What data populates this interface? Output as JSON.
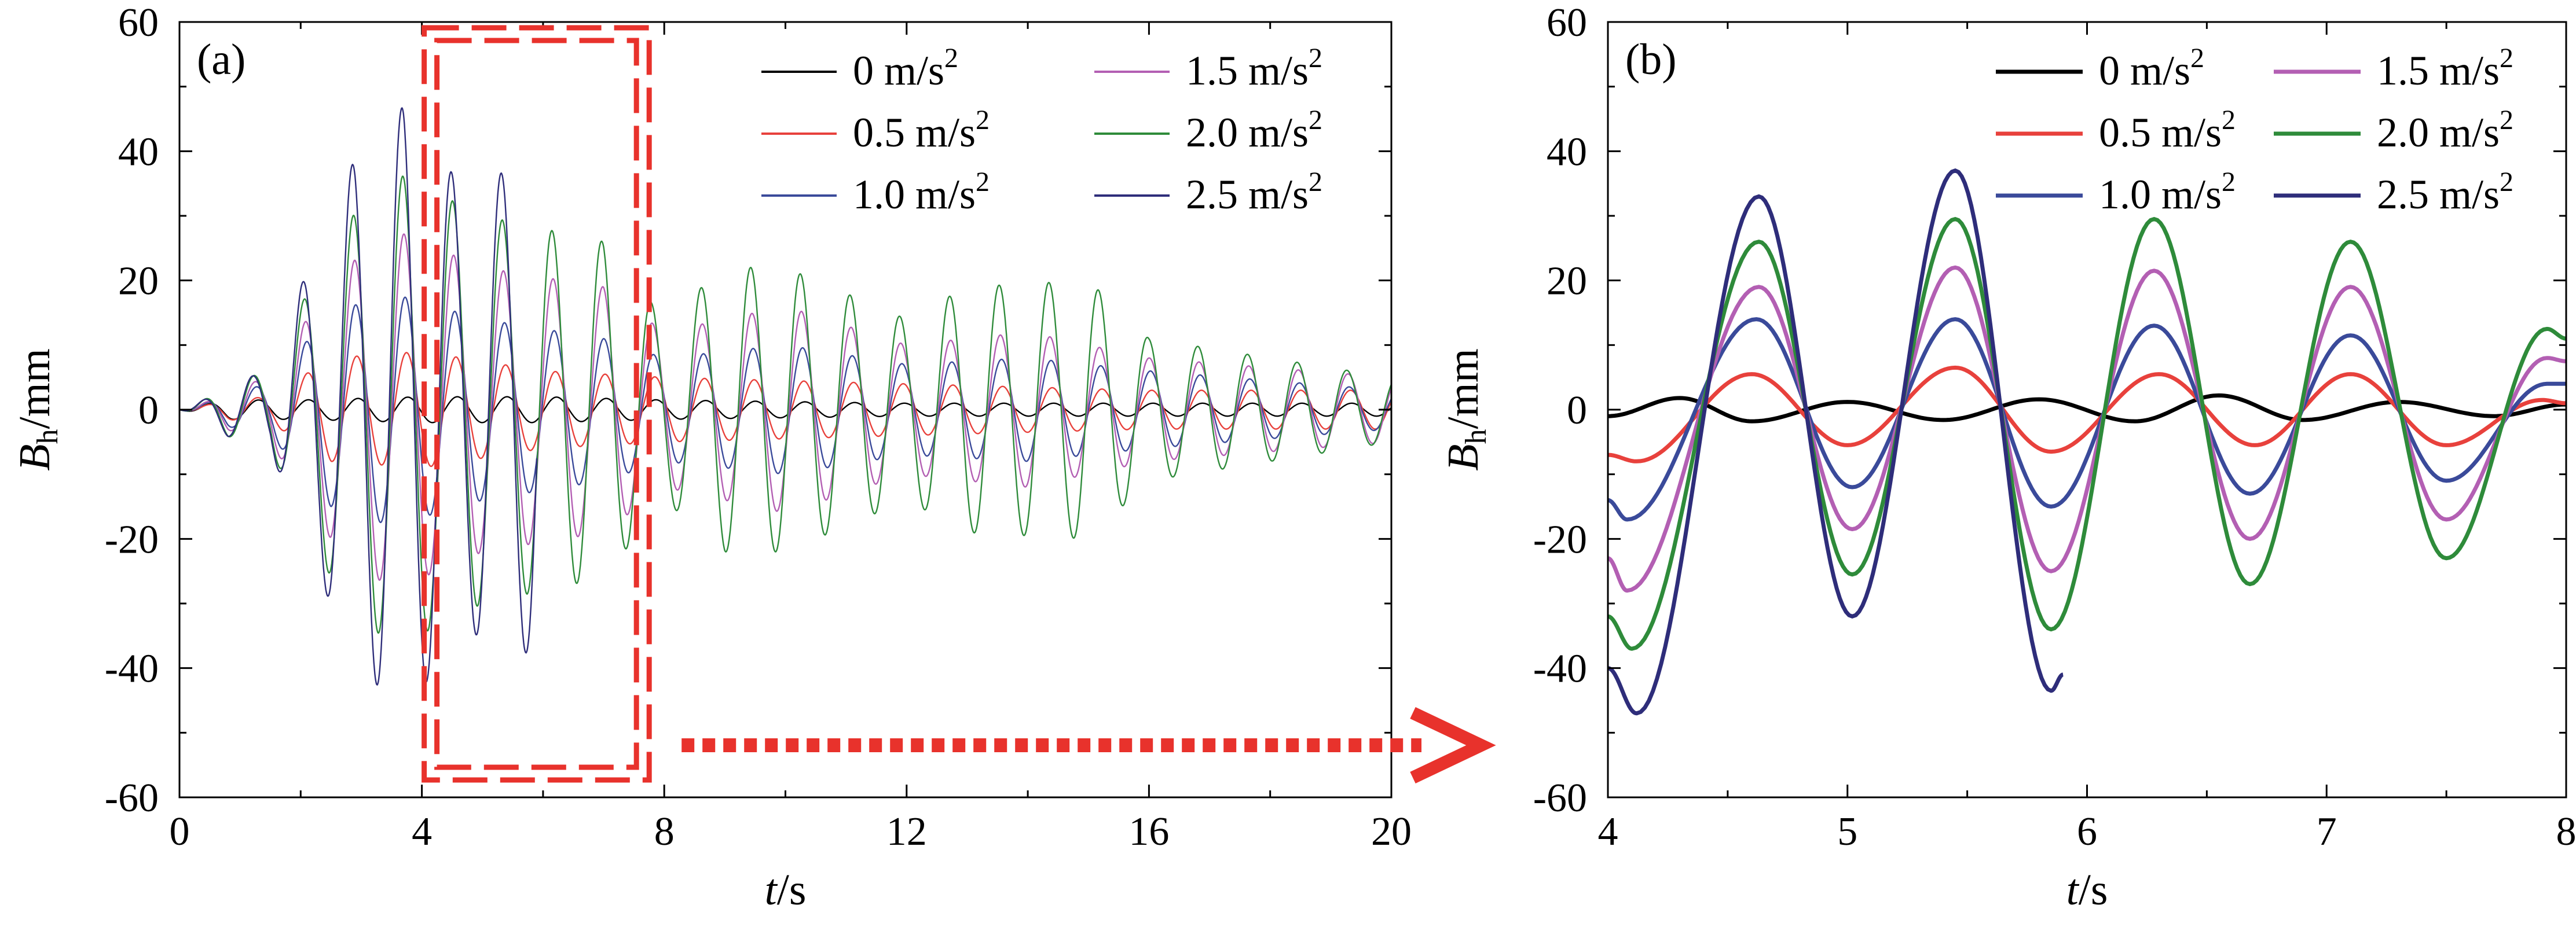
{
  "chart_data": [
    {
      "type": "line",
      "panel_label": "(a)",
      "xlabel": "t/s",
      "ylabel": "Bh/mm",
      "xlim": [
        0,
        20
      ],
      "ylim": [
        -60,
        60
      ],
      "xticks": [
        0,
        4,
        8,
        12,
        16,
        20
      ],
      "yticks": [
        -60,
        -40,
        -20,
        0,
        20,
        40,
        60
      ],
      "legend": {
        "placement": "top-right",
        "columns": 2
      },
      "annotation": "dashed red rectangle marks t = 4-8 s, zoomed in panel (b)",
      "series": [
        {
          "name": "0 m/s2",
          "color": "#000000",
          "envelope": [
            [
              0,
              1.5
            ],
            [
              2,
              1.5
            ],
            [
              4,
              2
            ],
            [
              6,
              2
            ],
            [
              8,
              1.5
            ],
            [
              12,
              1
            ],
            [
              16,
              1
            ],
            [
              20,
              1
            ]
          ]
        },
        {
          "name": "0.5 m/s2",
          "color": "#e8413c",
          "envelope": [
            [
              0,
              1
            ],
            [
              1.5,
              2
            ],
            [
              2.5,
              8
            ],
            [
              4,
              9
            ],
            [
              6,
              6
            ],
            [
              8,
              5
            ],
            [
              12,
              4
            ],
            [
              16,
              3
            ],
            [
              20,
              3
            ]
          ]
        },
        {
          "name": "1.0 m/s2",
          "color": "#3a4a9a",
          "envelope": [
            [
              0,
              1
            ],
            [
              1.5,
              4
            ],
            [
              2.5,
              15
            ],
            [
              3.5,
              18
            ],
            [
              5,
              14
            ],
            [
              7,
              11
            ],
            [
              8,
              8
            ],
            [
              10,
              10
            ],
            [
              12,
              7
            ],
            [
              14,
              8
            ],
            [
              16,
              6
            ],
            [
              20,
              3
            ]
          ]
        },
        {
          "name": "1.5 m/s2",
          "color": "#b35fb3",
          "envelope": [
            [
              0,
              1
            ],
            [
              1.5,
              5
            ],
            [
              2.5,
              20
            ],
            [
              3.5,
              28
            ],
            [
              5,
              22
            ],
            [
              7,
              19
            ],
            [
              8,
              12
            ],
            [
              10,
              16
            ],
            [
              12,
              10
            ],
            [
              14,
              12
            ],
            [
              16,
              8
            ],
            [
              20,
              5
            ]
          ]
        },
        {
          "name": "2.0 m/s2",
          "color": "#2e8b3a",
          "envelope": [
            [
              0,
              2
            ],
            [
              1.5,
              6
            ],
            [
              2.5,
              26
            ],
            [
              3.5,
              37
            ],
            [
              5,
              30
            ],
            [
              7,
              26
            ],
            [
              8,
              14
            ],
            [
              9,
              22
            ],
            [
              10,
              22
            ],
            [
              12,
              14
            ],
            [
              13,
              19
            ],
            [
              15,
              20
            ],
            [
              16,
              11
            ],
            [
              18,
              8
            ],
            [
              20,
              5
            ]
          ]
        },
        {
          "name": "2.5 m/s2",
          "color": "#2e2d7a",
          "envelope": [
            [
              0,
              2
            ],
            [
              1.5,
              6
            ],
            [
              2,
              19
            ],
            [
              2.9,
              39
            ],
            [
              3.7,
              47
            ],
            [
              4.7,
              34
            ],
            [
              5.4,
              37
            ],
            [
              5.9,
              38
            ]
          ],
          "end_x": 5.9
        }
      ]
    },
    {
      "type": "line",
      "panel_label": "(b)",
      "xlabel": "t/s",
      "ylabel": "Bh/mm",
      "xlim": [
        4,
        8
      ],
      "ylim": [
        -60,
        60
      ],
      "xticks": [
        4,
        5,
        6,
        7,
        8
      ],
      "yticks": [
        -60,
        -40,
        -20,
        0,
        20,
        40,
        60
      ],
      "legend": {
        "placement": "top-right",
        "columns": 2
      },
      "series": [
        {
          "name": "0 m/s2",
          "color": "#000000",
          "points": [
            [
              4,
              -1
            ],
            [
              4.3,
              1.8
            ],
            [
              4.6,
              -1.8
            ],
            [
              5.0,
              1.2
            ],
            [
              5.4,
              -1.6
            ],
            [
              5.8,
              1.6
            ],
            [
              6.2,
              -1.8
            ],
            [
              6.55,
              2.2
            ],
            [
              6.9,
              -1.6
            ],
            [
              7.3,
              1.2
            ],
            [
              7.7,
              -1.0
            ],
            [
              8,
              0.8
            ]
          ]
        },
        {
          "name": "0.5 m/s2",
          "color": "#e8413c",
          "points": [
            [
              4,
              -7
            ],
            [
              4.12,
              -8
            ],
            [
              4.6,
              5.5
            ],
            [
              5.0,
              -5.5
            ],
            [
              5.45,
              6.5
            ],
            [
              5.85,
              -6.5
            ],
            [
              6.3,
              5.5
            ],
            [
              6.7,
              -5.5
            ],
            [
              7.1,
              5.5
            ],
            [
              7.5,
              -5.5
            ],
            [
              7.9,
              1.5
            ],
            [
              8,
              1
            ]
          ]
        },
        {
          "name": "1.0 m/s2",
          "color": "#3a4a9a",
          "points": [
            [
              4,
              -14
            ],
            [
              4.08,
              -17
            ],
            [
              4.62,
              14
            ],
            [
              5.02,
              -12
            ],
            [
              5.45,
              14
            ],
            [
              5.85,
              -15
            ],
            [
              6.28,
              13
            ],
            [
              6.68,
              -13
            ],
            [
              7.1,
              11.5
            ],
            [
              7.5,
              -11
            ],
            [
              7.92,
              4
            ],
            [
              8,
              4
            ]
          ]
        },
        {
          "name": "1.5 m/s2",
          "color": "#b35fb3",
          "points": [
            [
              4,
              -23
            ],
            [
              4.08,
              -28
            ],
            [
              4.63,
              19
            ],
            [
              5.02,
              -18.5
            ],
            [
              5.45,
              22
            ],
            [
              5.85,
              -25
            ],
            [
              6.28,
              21.5
            ],
            [
              6.68,
              -20
            ],
            [
              7.1,
              19
            ],
            [
              7.5,
              -17
            ],
            [
              7.92,
              8
            ],
            [
              8,
              7.5
            ]
          ]
        },
        {
          "name": "2.0 m/s2",
          "color": "#2e8b3a",
          "points": [
            [
              4,
              -32
            ],
            [
              4.1,
              -37
            ],
            [
              4.63,
              26
            ],
            [
              5.02,
              -25.5
            ],
            [
              5.45,
              29.5
            ],
            [
              5.85,
              -34
            ],
            [
              6.28,
              29.5
            ],
            [
              6.68,
              -27
            ],
            [
              7.1,
              26
            ],
            [
              7.5,
              -23
            ],
            [
              7.92,
              12.5
            ],
            [
              8,
              11
            ]
          ]
        },
        {
          "name": "2.5 m/s2",
          "color": "#2e2d7a",
          "points": [
            [
              4,
              -40
            ],
            [
              4.12,
              -47
            ],
            [
              4.63,
              33
            ],
            [
              5.02,
              -32
            ],
            [
              5.45,
              37
            ],
            [
              5.85,
              -43.5
            ],
            [
              5.9,
              -41
            ]
          ]
        }
      ]
    }
  ]
}
